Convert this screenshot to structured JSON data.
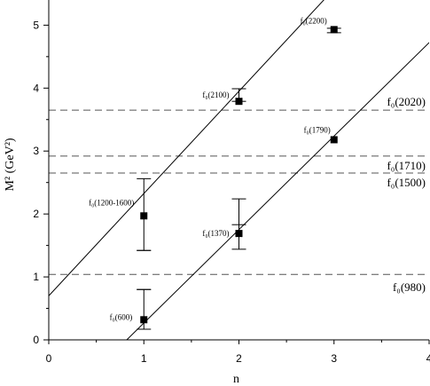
{
  "chart_data": {
    "type": "scatter",
    "xlabel": "n",
    "ylabel": "M² (GeV²)",
    "xlim": [
      0,
      4
    ],
    "ylim": [
      0,
      5.4
    ],
    "xticks": [
      "0",
      "1",
      "2",
      "3",
      "4"
    ],
    "yticks": [
      "0",
      "1",
      "2",
      "3",
      "4",
      "5"
    ],
    "grid": false,
    "points": [
      {
        "label": "f₀(600)",
        "x": 1,
        "y": 0.32,
        "err_low": 0.17,
        "err_high": 0.8
      },
      {
        "label": "f₀(1200-1600)",
        "x": 1,
        "y": 1.97,
        "err_low": 1.42,
        "err_high": 2.56
      },
      {
        "label": "f₀(1370)",
        "x": 2,
        "y": 1.69,
        "err_low": 1.44,
        "err_high": 2.24
      },
      {
        "label": "f₀(2100)",
        "x": 2,
        "y": 3.79,
        "err_low": 3.79,
        "err_high": 3.99
      },
      {
        "label": "f₀(1790)",
        "x": 3,
        "y": 3.18,
        "err_low": 3.18,
        "err_high": 3.18
      },
      {
        "label": "f₀(2200)",
        "x": 3,
        "y": 4.93,
        "err_low": 4.88,
        "err_high": 4.95
      }
    ],
    "extra_ticks": [
      {
        "x": 1,
        "y": 1.42
      },
      {
        "x": 1,
        "y": 0.8
      },
      {
        "x": 2,
        "y": 1.83
      }
    ],
    "lines": [
      {
        "x0": 0,
        "y0": 0.7,
        "slope": 1.625
      },
      {
        "x0": 0.82,
        "y0": 0,
        "slope": 1.485
      }
    ],
    "reference_lines": [
      {
        "label": "f₀(980)",
        "y": 1.04
      },
      {
        "label": "f₀(1500)",
        "y": 2.65
      },
      {
        "label": "f₀(1710)",
        "y": 2.92
      },
      {
        "label": "f₀(2020)",
        "y": 3.65
      }
    ]
  }
}
